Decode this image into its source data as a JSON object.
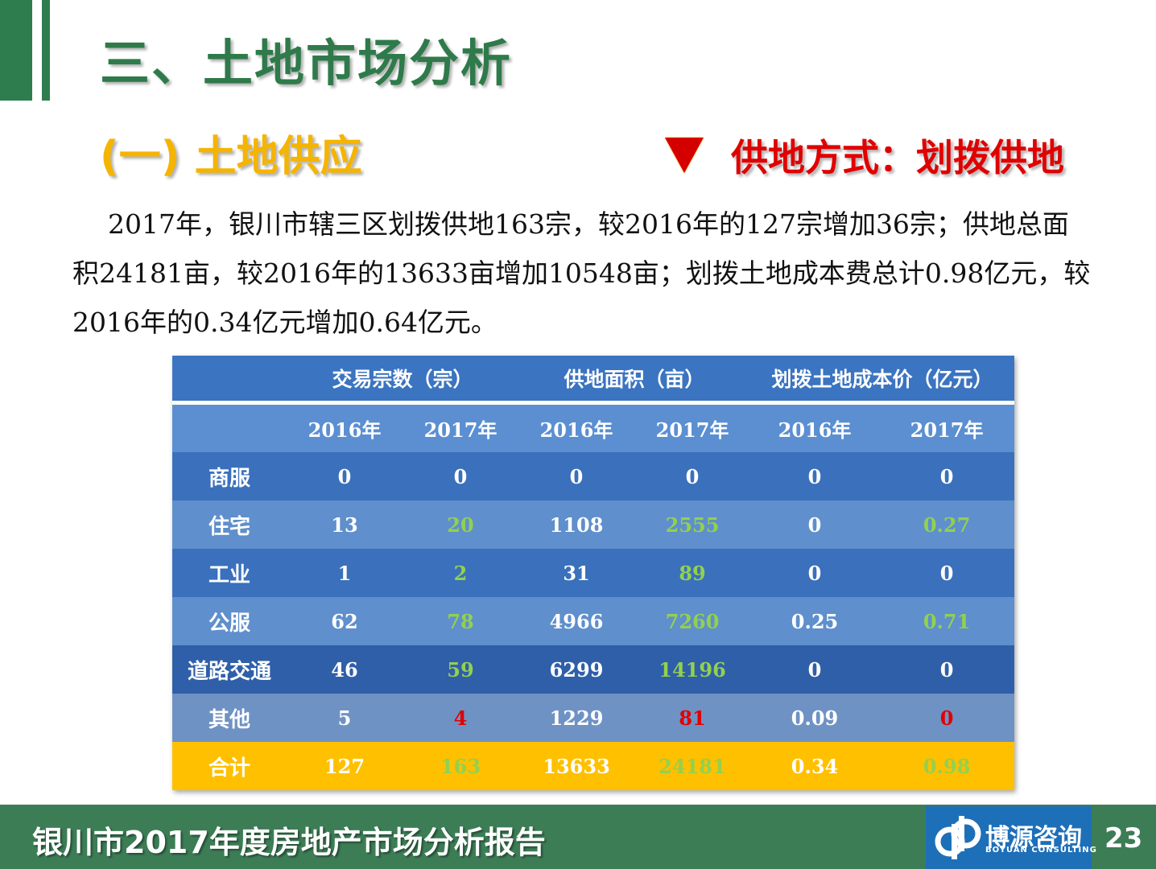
{
  "title": "三、土地市场分析",
  "subtitle": "(一) 土地供应",
  "method": "供地方式：划拨供地",
  "paragraph": "2017年，银川市辖三区划拨供地163宗，较2016年的127宗增加36宗；供地总面积24181亩，较2016年的13633亩增加10548亩；划拨土地成本费总计0.98亿元，较2016年的0.34亿元增加0.64亿元。",
  "table": {
    "group_headers": [
      "交易宗数（宗）",
      "供地面积（亩）",
      "划拨土地成本价（亿元）"
    ],
    "year_headers": [
      "2016年",
      "2017年",
      "2016年",
      "2017年",
      "2016年",
      "2017年"
    ],
    "rows": [
      {
        "category": "商服",
        "values": [
          "0",
          "0",
          "0",
          "0",
          "0",
          "0"
        ]
      },
      {
        "category": "住宅",
        "values": [
          "13",
          "20",
          "1108",
          "2555",
          "0",
          "0.27"
        ]
      },
      {
        "category": "工业",
        "values": [
          "1",
          "2",
          "31",
          "89",
          "0",
          "0"
        ]
      },
      {
        "category": "公服",
        "values": [
          "62",
          "78",
          "4966",
          "7260",
          "0.25",
          "0.71"
        ]
      },
      {
        "category": "道路交通",
        "values": [
          "46",
          "59",
          "6299",
          "14196",
          "0",
          "0"
        ]
      },
      {
        "category": "其他",
        "values": [
          "5",
          "4",
          "1229",
          "81",
          "0.09",
          "0"
        ]
      },
      {
        "category": "合计",
        "values": [
          "127",
          "163",
          "13633",
          "24181",
          "0.34",
          "0.98"
        ]
      }
    ]
  },
  "colors": {
    "green_value": "#92d050",
    "red_value": "#e00000",
    "total_row": "#ffc000",
    "theme_green": "#2f7a4a"
  },
  "footer": {
    "report_title": "银川市2017年度房地产市场分析报告",
    "logo_cn": "博源咨询",
    "logo_en": "BOYUAN CONSULTING",
    "page": "23"
  }
}
